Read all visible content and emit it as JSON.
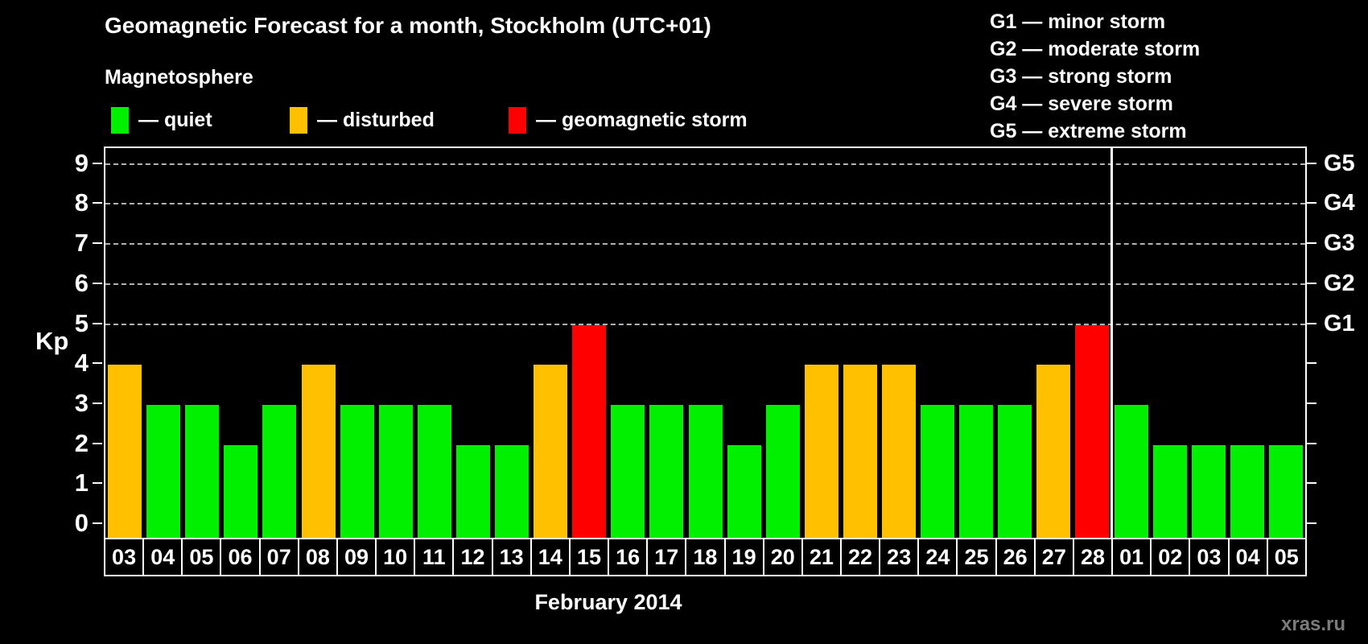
{
  "header": {
    "title": "Geomagnetic Forecast for a month, Stockholm (UTC+01)",
    "subtitle": "Magnetosphere"
  },
  "legend": {
    "items": [
      {
        "name": "quiet",
        "label": "— quiet",
        "color": "#00f000"
      },
      {
        "name": "disturbed",
        "label": "— disturbed",
        "color": "#ffc000"
      },
      {
        "name": "geomagnetic-storm",
        "label": "— geomagnetic storm",
        "color": "#ff0000"
      }
    ]
  },
  "storm_scale_legend": {
    "lines": [
      "G1 — minor storm",
      "G2 — moderate storm",
      "G3 — strong storm",
      "G4 — severe storm",
      "G5 — extreme storm"
    ]
  },
  "chart_data": {
    "type": "bar",
    "title": "Geomagnetic Forecast for a month, Stockholm (UTC+01)",
    "ylabel": "Kp",
    "xlabel": "February 2014",
    "ylim": [
      0,
      9
    ],
    "yticks": [
      0,
      1,
      2,
      3,
      4,
      5,
      6,
      7,
      8,
      9
    ],
    "grid_levels": [
      5,
      6,
      7,
      8,
      9
    ],
    "right_axis_labels": [
      {
        "kp": 5,
        "label": "G1"
      },
      {
        "kp": 6,
        "label": "G2"
      },
      {
        "kp": 7,
        "label": "G3"
      },
      {
        "kp": 8,
        "label": "G4"
      },
      {
        "kp": 9,
        "label": "G5"
      }
    ],
    "categories": [
      "03",
      "04",
      "05",
      "06",
      "07",
      "08",
      "09",
      "10",
      "11",
      "12",
      "13",
      "14",
      "15",
      "16",
      "17",
      "18",
      "19",
      "20",
      "21",
      "22",
      "23",
      "24",
      "25",
      "26",
      "27",
      "28",
      "01",
      "02",
      "03",
      "04",
      "05"
    ],
    "series": [
      {
        "name": "Kp forecast",
        "values": [
          4,
          3,
          3,
          2,
          3,
          4,
          3,
          3,
          3,
          2,
          2,
          4,
          5,
          3,
          3,
          3,
          2,
          3,
          4,
          4,
          4,
          3,
          3,
          3,
          4,
          5,
          3,
          2,
          2,
          2,
          2
        ]
      }
    ],
    "statuses": [
      "disturbed",
      "quiet",
      "quiet",
      "quiet",
      "quiet",
      "disturbed",
      "quiet",
      "quiet",
      "quiet",
      "quiet",
      "quiet",
      "disturbed",
      "storm",
      "quiet",
      "quiet",
      "quiet",
      "quiet",
      "quiet",
      "disturbed",
      "disturbed",
      "disturbed",
      "quiet",
      "quiet",
      "quiet",
      "disturbed",
      "storm",
      "quiet",
      "quiet",
      "quiet",
      "quiet",
      "quiet"
    ],
    "colors": {
      "quiet": "#00f000",
      "disturbed": "#ffc000",
      "storm": "#ff0000"
    },
    "month_separator_before_index": 26,
    "legend_position": "top"
  },
  "footer": {
    "month_label": "February 2014",
    "watermark": "xras.ru"
  }
}
